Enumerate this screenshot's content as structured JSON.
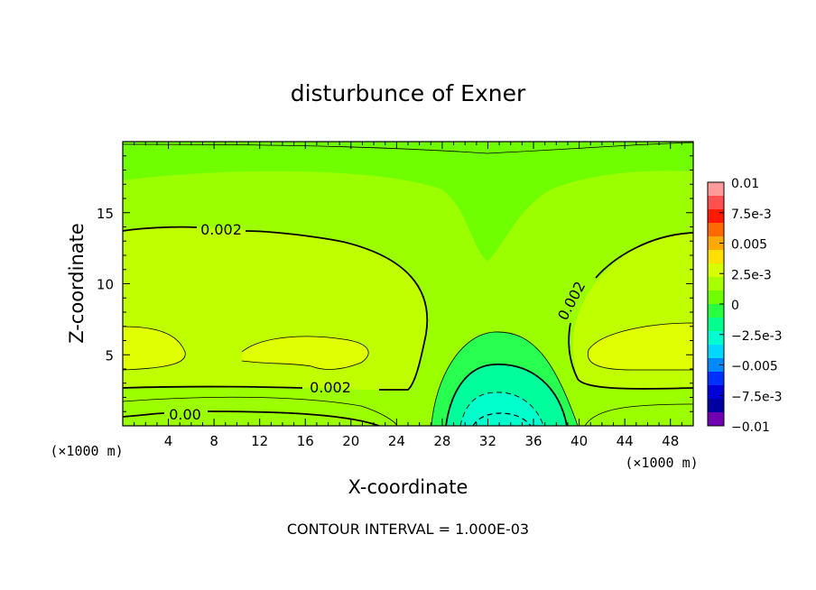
{
  "chart_data": {
    "type": "heatmap",
    "title": "disturbunce of Exner",
    "xlabel": "X-coordinate",
    "ylabel": "Z-coordinate",
    "x_units": "(×1000 m)",
    "z_units": "(×1000 m)",
    "footer": "CONTOUR INTERVAL = 1.000E-03",
    "xlim": [
      0,
      50
    ],
    "ylim": [
      0,
      20
    ],
    "xticks": [
      4,
      8,
      12,
      16,
      20,
      24,
      28,
      32,
      36,
      40,
      44,
      48
    ],
    "yticks": [
      5,
      10,
      15
    ],
    "contour_labels": [
      "0.002",
      "0.002",
      "0.002",
      "0.00"
    ],
    "colorbar": {
      "labels": [
        "0.01",
        "7.5e-3",
        "0.005",
        "2.5e-3",
        "0",
        "−2.5e-3",
        "−0.005",
        "−7.5e-3",
        "−0.01"
      ],
      "colors": [
        "#ff9a9a",
        "#ff5050",
        "#ff1a00",
        "#ff6a00",
        "#ffaa00",
        "#ffe000",
        "#d8ff00",
        "#a8ff00",
        "#70ff00",
        "#28ff40",
        "#00ff8c",
        "#00ffd0",
        "#00d8ff",
        "#0088ff",
        "#0030ff",
        "#0000d8",
        "#0000a0",
        "#7000b0"
      ]
    },
    "field_colors": {
      "band_0_to_1e-3": "#70ff00",
      "band_1e-3_to_2e-3": "#9cff00",
      "band_2e-3_to_3e-3": "#c0ff00",
      "band_3e-3_to_4e-3": "#e0ff00",
      "band_-1e-3_to_0": "#28ff50",
      "band_-2e-3_to_-1e-3": "#00ff9c",
      "band_-3e-3_to_-2e-3": "#00ffcc"
    }
  }
}
